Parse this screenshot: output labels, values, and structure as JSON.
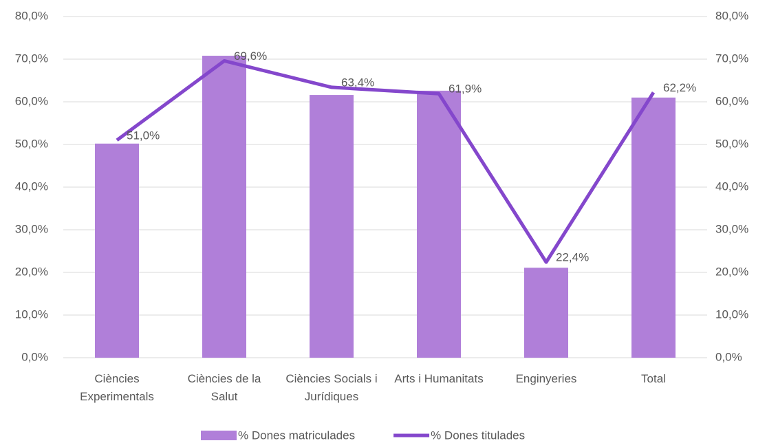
{
  "chart_data": {
    "type": "bar_line",
    "categories": [
      "Ciències Experimentals",
      "Ciències de la Salut",
      "Ciències Socials i Jurídiques",
      "Arts i Humanitats",
      "Enginyeries",
      "Total"
    ],
    "series": [
      {
        "name": "% Dones matriculades",
        "type": "bar",
        "color": "#b07fd9",
        "values": [
          50.2,
          70.8,
          61.6,
          62.6,
          21.1,
          61.0
        ]
      },
      {
        "name": "% Dones titulades",
        "type": "line",
        "axis": "y2",
        "color": "#8447cc",
        "values": [
          51.0,
          69.6,
          63.4,
          61.9,
          22.4,
          62.2
        ],
        "value_labels": [
          "51,0%",
          "69,6%",
          "63,4%",
          "61,9%",
          "22,4%",
          "62,2%"
        ]
      }
    ],
    "ylim": [
      0,
      80
    ],
    "yticks": [
      {
        "value": 0,
        "label": "0,0%"
      },
      {
        "value": 10,
        "label": "10,0%"
      },
      {
        "value": 20,
        "label": "20,0%"
      },
      {
        "value": 30,
        "label": "30,0%"
      },
      {
        "value": 40,
        "label": "40,0%"
      },
      {
        "value": 50,
        "label": "50,0%"
      },
      {
        "value": 60,
        "label": "60,0%"
      },
      {
        "value": 70,
        "label": "70,0%"
      },
      {
        "value": 80,
        "label": "80,0%"
      }
    ],
    "y2lim": [
      0,
      80
    ],
    "y2ticks": [
      {
        "value": 0,
        "label": "0,0%"
      },
      {
        "value": 10,
        "label": "10,0%"
      },
      {
        "value": 20,
        "label": "20,0%"
      },
      {
        "value": 30,
        "label": "30,0%"
      },
      {
        "value": 40,
        "label": "40,0%"
      },
      {
        "value": 50,
        "label": "50,0%"
      },
      {
        "value": 60,
        "label": "60,0%"
      },
      {
        "value": 70,
        "label": "70,0%"
      },
      {
        "value": 80,
        "label": "80,0%"
      }
    ],
    "grid": true,
    "legend": "bottom"
  }
}
